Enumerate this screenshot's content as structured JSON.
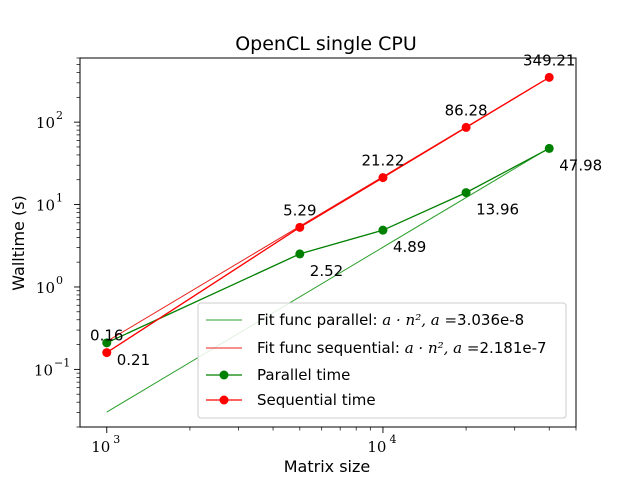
{
  "chart_data": {
    "type": "line",
    "title": "OpenCL single CPU",
    "xlabel": "Matrix size",
    "ylabel": "Walltime (s)",
    "xscale": "log",
    "yscale": "log",
    "xlim": [
      800,
      50000
    ],
    "ylim": [
      0.02,
      600
    ],
    "x_ticks": [
      {
        "value": 1000,
        "base": "10",
        "exp": "3"
      },
      {
        "value": 10000,
        "base": "10",
        "exp": "4"
      }
    ],
    "y_ticks": [
      {
        "value": 0.1,
        "base": "10",
        "exp": "−1"
      },
      {
        "value": 1,
        "base": "10",
        "exp": "0"
      },
      {
        "value": 10,
        "base": "10",
        "exp": "1"
      },
      {
        "value": 100,
        "base": "10",
        "exp": "2"
      }
    ],
    "legend_position": "lower-right",
    "grid": false,
    "x": [
      1000,
      5000,
      10000,
      20000,
      40000
    ],
    "series": [
      {
        "key": "fit_parallel",
        "kind": "line",
        "color": "#2ca02c",
        "x": [
          1000,
          40000
        ],
        "values": [
          0.03036,
          48.576
        ],
        "legend": {
          "prefix": "Fit func parallel:  ",
          "formula": "a · n², a =",
          "coef": "3.036e-8"
        }
      },
      {
        "key": "fit_sequential",
        "kind": "line",
        "color": "#e8211c",
        "x": [
          1000,
          40000
        ],
        "values": [
          0.2181,
          348.96
        ],
        "legend": {
          "prefix": "Fit func sequential:  ",
          "formula": "a · n², a =",
          "coef": "2.181e-7"
        }
      },
      {
        "key": "parallel",
        "kind": "line-marker",
        "color": "#008000",
        "name": "Parallel time",
        "values": [
          0.21,
          2.52,
          4.89,
          13.96,
          47.98
        ],
        "labels": [
          "0.21",
          "2.52",
          "4.89",
          "13.96",
          "47.98"
        ]
      },
      {
        "key": "sequential",
        "kind": "line-marker",
        "color": "#ff0000",
        "name": "Sequential time",
        "values": [
          0.16,
          5.29,
          21.22,
          86.28,
          349.21
        ],
        "labels": [
          "0.16",
          "5.29",
          "21.22",
          "86.28",
          "349.21"
        ]
      }
    ]
  }
}
